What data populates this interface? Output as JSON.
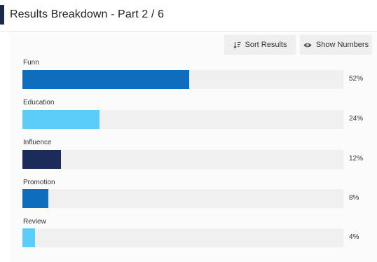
{
  "header": {
    "title": "Results Breakdown - Part 2 / 6",
    "accent_color": "#1b2a45"
  },
  "toolbar": {
    "sort_label": "Sort Results",
    "sort_icon": "sort-descending-icon",
    "show_label": "Show Numbers",
    "show_icon": "eye-icon"
  },
  "results": [
    {
      "label": "Funn",
      "percent_text": "52%",
      "value": 52,
      "color": "#0e6dbd"
    },
    {
      "label": "Education",
      "percent_text": "24%",
      "value": 24,
      "color": "#5bcdf8"
    },
    {
      "label": "Influence",
      "percent_text": "12%",
      "value": 12,
      "color": "#1b2c5a"
    },
    {
      "label": "Promotion",
      "percent_text": "8%",
      "value": 8,
      "color": "#0e6dbd"
    },
    {
      "label": "Review",
      "percent_text": "4%",
      "value": 4,
      "color": "#5bcdf8"
    }
  ]
}
